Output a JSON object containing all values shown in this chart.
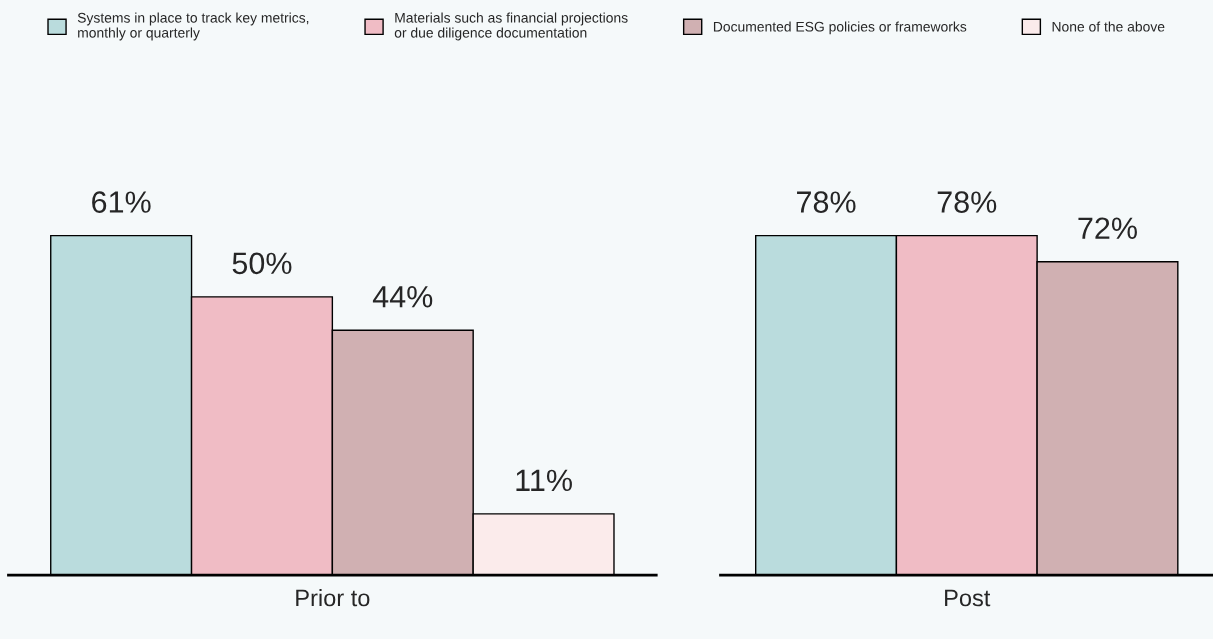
{
  "chart_data": [
    {
      "type": "bar",
      "xlabel": "Prior to",
      "categories": [
        null
      ],
      "legend": "top",
      "series": [
        {
          "name": "Systems in place to track key metrics, monthly or quarterly",
          "color": "#badcdd",
          "values": [
            61
          ],
          "value_labels": [
            "61%"
          ]
        },
        {
          "name": "Materials such as financial projections or due diligence documentation",
          "color": "#f0bcc5",
          "values": [
            50
          ],
          "value_labels": [
            "50%"
          ]
        },
        {
          "name": "Documented ESG policies or frameworks",
          "color": "#d0b0b2",
          "values": [
            44
          ],
          "value_labels": [
            "44%"
          ]
        },
        {
          "name": "None of the above",
          "color": "#fbebeb",
          "values": [
            11
          ],
          "value_labels": [
            "11%"
          ]
        }
      ]
    },
    {
      "type": "bar",
      "xlabel": "Post",
      "categories": [
        null
      ],
      "series": [
        {
          "color": "#badcdd",
          "values": [
            78
          ],
          "value_labels": [
            "78%"
          ]
        },
        {
          "color": "#f0bcc5",
          "values": [
            78
          ],
          "value_labels": [
            "78%"
          ]
        },
        {
          "color": "#d0b0b2",
          "values": [
            72
          ],
          "value_labels": [
            "72%"
          ]
        }
      ]
    }
  ]
}
